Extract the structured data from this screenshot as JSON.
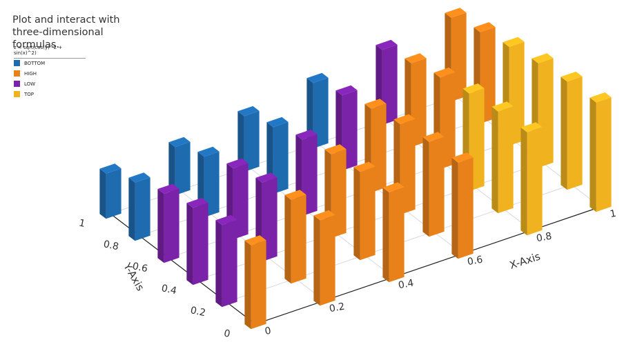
{
  "chart_data": {
    "type": "bar3d",
    "title": "Plot and interact with three-dimensional formulas.",
    "subtitle": "z = sqrt(cos(y)^2 + sin(x)^2)",
    "x_label": "X-Axis",
    "y_label": "Y-Axis",
    "xlim": [
      0,
      1
    ],
    "ylim": [
      0,
      1
    ],
    "zlim": [
      0,
      1.4
    ],
    "xticks": [
      0,
      0.2,
      0.4,
      0.6,
      0.8,
      1
    ],
    "yticks": [
      0,
      0.2,
      0.4,
      0.6,
      0.8,
      1
    ],
    "grid": true,
    "series": [
      {
        "name": "BOTTOM",
        "color": "#1f6bb0",
        "x": [
          0,
          0,
          0.2,
          0.2,
          0.4,
          0.4,
          0.6
        ],
        "y": [
          0.8,
          1,
          0.8,
          1,
          0.8,
          1,
          1
        ],
        "z": [
          0.696,
          0.54,
          0.724,
          0.576,
          0.798,
          0.666,
          0.782
        ]
      },
      {
        "name": "HIGH",
        "color": "#e8811a",
        "x": [
          0,
          0.2,
          0.2,
          0.4,
          0.4,
          0.4,
          0.6,
          0.6,
          0.6,
          0.6,
          0.8,
          0.8,
          1,
          1
        ],
        "y": [
          0,
          0,
          0.2,
          0,
          0.2,
          0.4,
          0,
          0.2,
          0.4,
          0.6,
          0.6,
          0.8,
          0.8,
          1
        ],
        "z": [
          1,
          1.02,
          1,
          1.073,
          1.055,
          1,
          1.148,
          1.131,
          1.08,
          1,
          1.094,
          1,
          1.092,
          1
        ]
      },
      {
        "name": "LOW",
        "color": "#7a22a8",
        "x": [
          0,
          0,
          0,
          0.2,
          0.2,
          0.4,
          0.6,
          0.8
        ],
        "y": [
          0.2,
          0.4,
          0.6,
          0.4,
          0.6,
          0.6,
          0.8,
          1
        ],
        "z": [
          0.98,
          0.921,
          0.825,
          0.942,
          0.849,
          0.913,
          0.897,
          0.898
        ]
      },
      {
        "name": "TOP",
        "color": "#f0b21e",
        "x": [
          0.8,
          0.8,
          0.8,
          1,
          1,
          1,
          1
        ],
        "y": [
          0,
          0.2,
          0.4,
          0,
          0.2,
          0.4,
          0.6
        ],
        "z": [
          1.231,
          1.215,
          1.167,
          1.307,
          1.292,
          1.247,
          1.179
        ]
      }
    ]
  }
}
